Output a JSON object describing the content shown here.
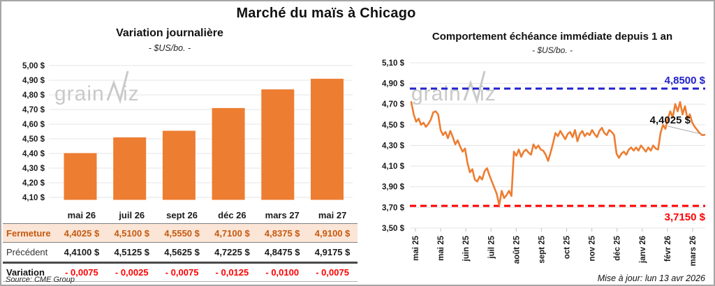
{
  "page": {
    "title": "Marché du maïs à Chicago",
    "source_note": "Source: CME Group",
    "update_note": "Mise à jour: lun 13 avr 2026",
    "watermark": "grainwiz"
  },
  "colors": {
    "orange": "#ED7D31",
    "blue": "#2222CC",
    "red": "#FF0000",
    "peach": "#FBE5D6",
    "brown": "#C55A11",
    "grid": "#E4E4E4",
    "tick": "#BFBFBF",
    "watermark": "#C9C9C9",
    "leader": "#A6A6A6",
    "border": "#A6A6A6"
  },
  "chart_data": [
    {
      "type": "bar",
      "title": "Variation journalière",
      "subtitle": "- $US/bo. -",
      "categories": [
        "mai 26",
        "juil 26",
        "sept 26",
        "déc 26",
        "mars 27",
        "mai 27"
      ],
      "values": [
        4.4025,
        4.51,
        4.555,
        4.71,
        4.8375,
        4.91
      ],
      "ylim": [
        4.08,
        5.02
      ],
      "grid": true,
      "bar_color": "#ED7D31",
      "yticks": [
        {
          "v": 5.0,
          "label": "5,00 $"
        },
        {
          "v": 4.9,
          "label": "4,90 $"
        },
        {
          "v": 4.8,
          "label": "4,80 $"
        },
        {
          "v": 4.7,
          "label": "4,70 $"
        },
        {
          "v": 4.6,
          "label": "4,60 $"
        },
        {
          "v": 4.5,
          "label": "4,50 $"
        },
        {
          "v": 4.4,
          "label": "4,40 $"
        },
        {
          "v": 4.3,
          "label": "4,30 $"
        },
        {
          "v": 4.2,
          "label": "4,20 $"
        },
        {
          "v": 4.1,
          "label": "4,10 $"
        }
      ]
    },
    {
      "type": "line",
      "title": "Comportement échéance immédiate depuis 1 an",
      "subtitle": "- $US/bo. -",
      "line_color": "#ED7D31",
      "ylim": [
        3.5,
        5.1
      ],
      "grid": true,
      "x_ticks": [
        "mai 25",
        "mai 25",
        "juin 25",
        "juil 25",
        "août 25",
        "sept 25",
        "oct 25",
        "nov 25",
        "déc 25",
        "janv 26",
        "févr 26",
        "mars 26"
      ],
      "yticks": [
        {
          "v": 5.1,
          "label": "5,10 $"
        },
        {
          "v": 4.9,
          "label": "4,90 $"
        },
        {
          "v": 4.7,
          "label": "4,70 $"
        },
        {
          "v": 4.5,
          "label": "4,50 $"
        },
        {
          "v": 4.3,
          "label": "4,30 $"
        },
        {
          "v": 4.1,
          "label": "4,10 $"
        },
        {
          "v": 3.9,
          "label": "3,90 $"
        },
        {
          "v": 3.7,
          "label": "3,70 $"
        },
        {
          "v": 3.5,
          "label": "3,50 $"
        }
      ],
      "high_line": {
        "value": 4.85,
        "label": "4,8500 $",
        "color": "#2222CC"
      },
      "low_line": {
        "value": 3.715,
        "label": "3,7150 $",
        "color": "#FF0000"
      },
      "last_value": 4.4025,
      "last_label": "4,4025 $",
      "values": [
        4.72,
        4.6,
        4.53,
        4.56,
        4.5,
        4.52,
        4.48,
        4.51,
        4.55,
        4.62,
        4.63,
        4.6,
        4.45,
        4.4,
        4.43,
        4.37,
        4.44,
        4.38,
        4.31,
        4.35,
        4.29,
        4.24,
        4.27,
        4.13,
        4.04,
        4.07,
        3.97,
        3.95,
        4.0,
        3.97,
        4.05,
        4.08,
        4.01,
        3.95,
        3.89,
        3.83,
        3.72,
        3.86,
        3.79,
        3.82,
        3.86,
        3.81,
        4.24,
        4.2,
        4.26,
        4.19,
        4.24,
        4.26,
        4.23,
        4.21,
        4.31,
        4.27,
        4.3,
        4.26,
        4.25,
        4.21,
        4.15,
        4.23,
        4.32,
        4.42,
        4.39,
        4.44,
        4.4,
        4.36,
        4.41,
        4.43,
        4.38,
        4.45,
        4.34,
        4.41,
        4.44,
        4.39,
        4.42,
        4.4,
        4.45,
        4.41,
        4.38,
        4.44,
        4.47,
        4.42,
        4.4,
        4.45,
        4.43,
        4.4,
        4.22,
        4.18,
        4.22,
        4.24,
        4.21,
        4.26,
        4.28,
        4.25,
        4.28,
        4.25,
        4.3,
        4.27,
        4.24,
        4.28,
        4.25,
        4.3,
        4.27,
        4.26,
        4.42,
        4.5,
        4.46,
        4.56,
        4.63,
        4.57,
        4.7,
        4.63,
        4.72,
        4.6,
        4.68,
        4.56,
        4.6,
        4.52,
        4.48,
        4.45,
        4.42,
        4.4,
        4.4025
      ]
    }
  ],
  "table": {
    "columns": [
      "mai 26",
      "juil 26",
      "sept 26",
      "déc 26",
      "mars 27",
      "mai 27"
    ],
    "rows": [
      {
        "label": "Fermeture",
        "values": [
          "4,4025 $",
          "4,5100 $",
          "4,5550 $",
          "4,7100 $",
          "4,8375 $",
          "4,9100 $"
        ]
      },
      {
        "label": "Précédent",
        "values": [
          "4,4100 $",
          "4,5125 $",
          "4,5625 $",
          "4,7225 $",
          "4,8475 $",
          "4,9175 $"
        ]
      },
      {
        "label": "Variation",
        "values": [
          "- 0,0075",
          "- 0,0025",
          "- 0,0075",
          "- 0,0125",
          "- 0,0100",
          "- 0,0075"
        ]
      }
    ]
  }
}
